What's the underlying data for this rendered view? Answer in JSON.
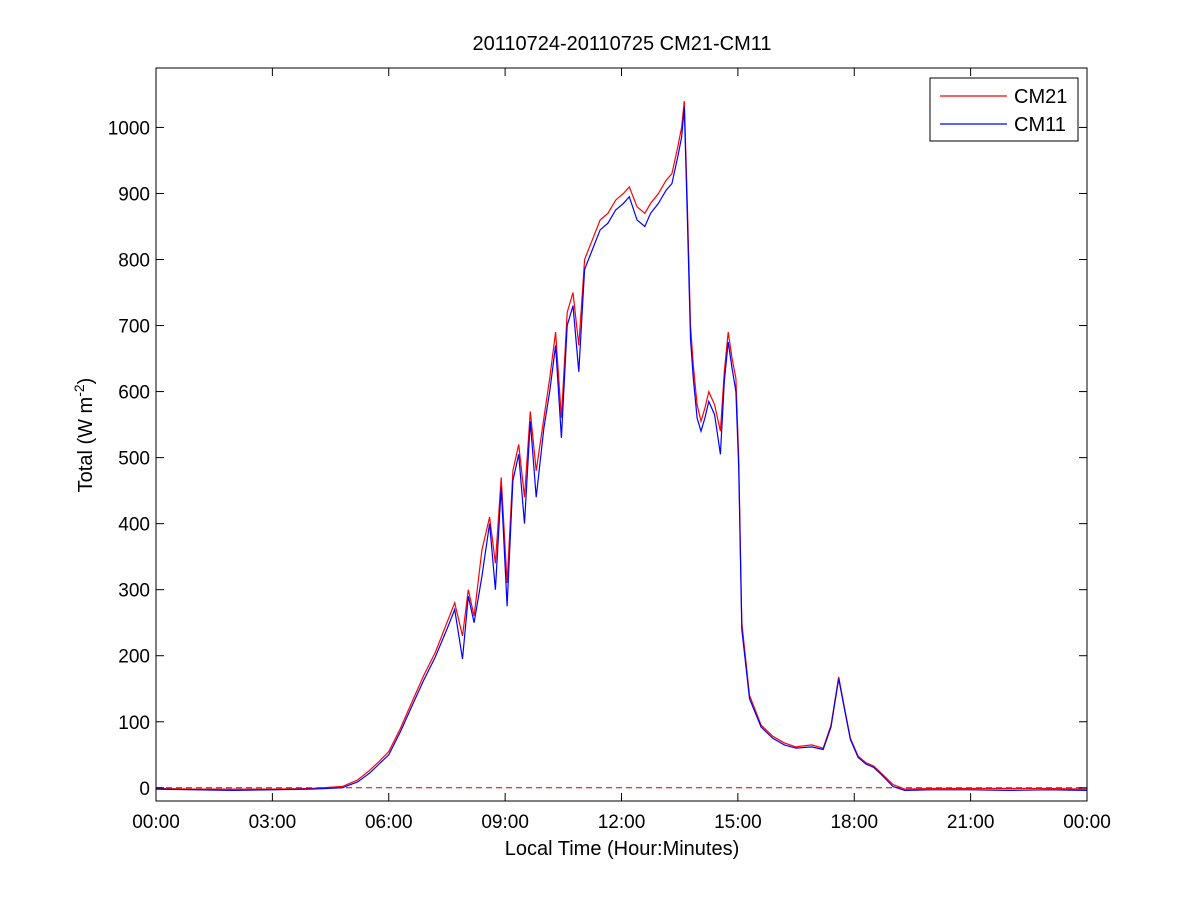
{
  "chart_data": {
    "type": "line",
    "title": "20110724-20110725 CM21-CM11",
    "xlabel": "Local Time (Hour:Minutes)",
    "ylabel": "Total (W m",
    "ylabel_sup": "-2",
    "ylabel_end": ")",
    "xlim": [
      0,
      24
    ],
    "ylim": [
      -20,
      1090
    ],
    "grid": false,
    "legend_position": "top-right",
    "x_ticks": [
      0,
      3,
      6,
      9,
      12,
      15,
      18,
      21,
      24
    ],
    "x_tick_labels": [
      "00:00",
      "03:00",
      "06:00",
      "09:00",
      "12:00",
      "15:00",
      "18:00",
      "21:00",
      "00:00"
    ],
    "y_ticks": [
      0,
      100,
      200,
      300,
      400,
      500,
      600,
      700,
      800,
      900,
      1000
    ],
    "y_tick_labels": [
      "0",
      "100",
      "200",
      "300",
      "400",
      "500",
      "600",
      "700",
      "800",
      "900",
      "1000"
    ],
    "reference_line": {
      "y": 0,
      "style": "dashed",
      "color": "#cc0000"
    },
    "series": [
      {
        "name": "CM21",
        "color": "#ff0000",
        "x": [
          0,
          1,
          2,
          3,
          4,
          4.8,
          5.2,
          5.5,
          5.75,
          6,
          6.3,
          6.6,
          6.9,
          7.2,
          7.5,
          7.7,
          7.9,
          8.05,
          8.2,
          8.4,
          8.6,
          8.75,
          8.9,
          9.05,
          9.2,
          9.35,
          9.5,
          9.65,
          9.8,
          10,
          10.15,
          10.3,
          10.45,
          10.6,
          10.75,
          10.9,
          11.05,
          11.25,
          11.45,
          11.65,
          11.85,
          12.05,
          12.2,
          12.4,
          12.6,
          12.75,
          12.95,
          13.15,
          13.3,
          13.45,
          13.55,
          13.62,
          13.7,
          13.78,
          13.85,
          13.95,
          14.05,
          14.15,
          14.25,
          14.4,
          14.55,
          14.65,
          14.75,
          14.85,
          14.95,
          15.02,
          15.1,
          15.3,
          15.6,
          15.9,
          16.2,
          16.5,
          16.9,
          17.2,
          17.4,
          17.6,
          17.75,
          17.9,
          18.1,
          18.3,
          18.5,
          18.7,
          19,
          19.3,
          20,
          21,
          22,
          23,
          24
        ],
        "y": [
          -1,
          -2,
          -2,
          -2,
          -1,
          2,
          12,
          26,
          40,
          55,
          90,
          130,
          170,
          205,
          250,
          280,
          230,
          300,
          260,
          360,
          410,
          340,
          470,
          310,
          480,
          520,
          440,
          570,
          480,
          560,
          620,
          690,
          560,
          720,
          750,
          670,
          800,
          830,
          860,
          870,
          890,
          900,
          910,
          880,
          870,
          885,
          900,
          920,
          930,
          970,
          1000,
          1040,
          880,
          700,
          640,
          580,
          555,
          575,
          600,
          580,
          540,
          630,
          690,
          650,
          620,
          500,
          250,
          140,
          95,
          78,
          68,
          62,
          65,
          60,
          95,
          168,
          120,
          75,
          48,
          38,
          33,
          22,
          5,
          -2,
          -1,
          -1,
          -1,
          -1,
          -2
        ]
      },
      {
        "name": "CM11",
        "color": "#0000ff",
        "x": [
          0,
          1,
          2,
          3,
          4,
          4.8,
          5.2,
          5.5,
          5.75,
          6,
          6.3,
          6.6,
          6.9,
          7.2,
          7.5,
          7.7,
          7.9,
          8.05,
          8.2,
          8.4,
          8.6,
          8.75,
          8.9,
          9.05,
          9.2,
          9.35,
          9.5,
          9.65,
          9.8,
          10,
          10.15,
          10.3,
          10.45,
          10.6,
          10.75,
          10.9,
          11.05,
          11.25,
          11.45,
          11.65,
          11.85,
          12.05,
          12.2,
          12.4,
          12.6,
          12.75,
          12.95,
          13.15,
          13.3,
          13.45,
          13.55,
          13.62,
          13.7,
          13.78,
          13.85,
          13.95,
          14.05,
          14.15,
          14.25,
          14.4,
          14.55,
          14.65,
          14.75,
          14.85,
          14.95,
          15.02,
          15.1,
          15.3,
          15.6,
          15.9,
          16.2,
          16.5,
          16.9,
          17.2,
          17.4,
          17.6,
          17.75,
          17.9,
          18.1,
          18.3,
          18.5,
          18.7,
          19,
          19.3,
          20,
          21,
          22,
          23,
          24
        ],
        "y": [
          -2,
          -3,
          -4,
          -3,
          -2,
          0,
          9,
          22,
          36,
          50,
          85,
          124,
          163,
          198,
          240,
          270,
          195,
          290,
          250,
          320,
          400,
          300,
          455,
          275,
          465,
          505,
          400,
          555,
          440,
          545,
          600,
          670,
          530,
          700,
          730,
          630,
          785,
          815,
          845,
          855,
          875,
          885,
          895,
          860,
          850,
          870,
          885,
          905,
          915,
          955,
          985,
          1030,
          860,
          680,
          620,
          560,
          540,
          560,
          585,
          565,
          505,
          615,
          675,
          635,
          600,
          485,
          240,
          135,
          92,
          75,
          65,
          60,
          62,
          58,
          92,
          165,
          118,
          73,
          46,
          36,
          31,
          20,
          2,
          -4,
          -3,
          -3,
          -4,
          -3,
          -4
        ]
      }
    ]
  }
}
